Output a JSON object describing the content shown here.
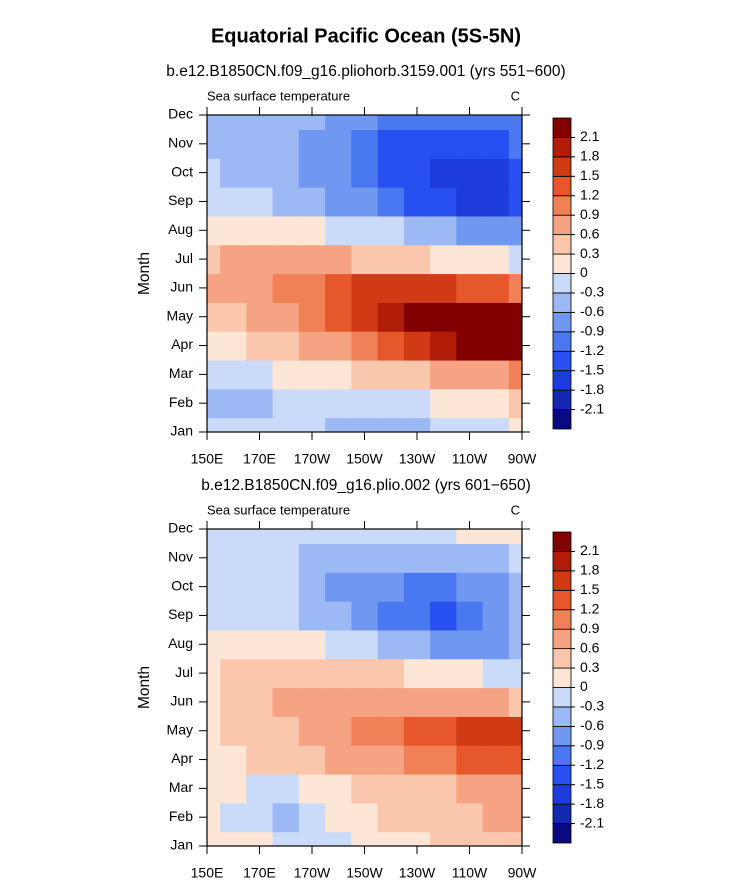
{
  "title": "Equatorial Pacific Ocean (5S-5N)",
  "chart_data": [
    {
      "type": "contour",
      "title": "b.e12.B1850CN.f09_g16.pliohorb.3159.001 (yrs 551−600)",
      "left_label": "Sea surface temperature",
      "right_label": "C",
      "y_label": "Month",
      "x": [
        150,
        160,
        170,
        180,
        190,
        200,
        210,
        220,
        230,
        240,
        250,
        260,
        270
      ],
      "categories": [
        "Jan",
        "Feb",
        "Mar",
        "Apr",
        "May",
        "Jun",
        "Jul",
        "Aug",
        "Sep",
        "Oct",
        "Nov",
        "Dec"
      ],
      "values": [
        [
          -0.2,
          -0.2,
          -0.2,
          -0.2,
          -0.3,
          -0.4,
          -0.4,
          -0.4,
          -0.4,
          -0.3,
          -0.2,
          -0.1,
          0.0
        ],
        [
          -0.4,
          -0.4,
          -0.4,
          -0.3,
          -0.2,
          -0.2,
          -0.2,
          -0.1,
          -0.1,
          0.0,
          0.1,
          0.2,
          0.3
        ],
        [
          -0.2,
          -0.2,
          -0.1,
          0.0,
          0.1,
          0.2,
          0.3,
          0.4,
          0.5,
          0.6,
          0.7,
          0.8,
          0.9
        ],
        [
          0.1,
          0.2,
          0.3,
          0.4,
          0.6,
          0.8,
          1.0,
          1.3,
          1.6,
          1.9,
          2.2,
          2.3,
          2.2
        ],
        [
          0.4,
          0.5,
          0.6,
          0.8,
          1.0,
          1.3,
          1.6,
          1.9,
          2.2,
          2.3,
          2.4,
          2.4,
          2.3
        ],
        [
          0.6,
          0.7,
          0.8,
          1.0,
          1.1,
          1.3,
          1.5,
          1.6,
          1.7,
          1.6,
          1.4,
          1.2,
          1.0
        ],
        [
          0.5,
          0.6,
          0.7,
          0.7,
          0.7,
          0.6,
          0.5,
          0.4,
          0.3,
          0.2,
          0.1,
          0.0,
          -0.2
        ],
        [
          0.2,
          0.2,
          0.2,
          0.1,
          0.0,
          -0.1,
          -0.2,
          -0.3,
          -0.5,
          -0.6,
          -0.7,
          -0.8,
          -0.9
        ],
        [
          -0.1,
          -0.2,
          -0.3,
          -0.4,
          -0.5,
          -0.7,
          -0.9,
          -1.1,
          -1.3,
          -1.5,
          -1.6,
          -1.6,
          -1.5
        ],
        [
          -0.3,
          -0.4,
          -0.5,
          -0.6,
          -0.7,
          -0.9,
          -1.1,
          -1.3,
          -1.5,
          -1.7,
          -1.7,
          -1.7,
          -1.5
        ],
        [
          -0.4,
          -0.5,
          -0.5,
          -0.6,
          -0.7,
          -0.9,
          -1.1,
          -1.3,
          -1.4,
          -1.5,
          -1.5,
          -1.4,
          -1.2
        ],
        [
          -0.4,
          -0.4,
          -0.5,
          -0.5,
          -0.6,
          -0.7,
          -0.9,
          -1.0,
          -1.1,
          -1.2,
          -1.2,
          -1.1,
          -1.0
        ]
      ],
      "xlim": [
        150,
        270
      ],
      "xticks": [
        {
          "value": 150,
          "label": "150E"
        },
        {
          "value": 170,
          "label": "170E"
        },
        {
          "value": 190,
          "label": "170W"
        },
        {
          "value": 210,
          "label": "150W"
        },
        {
          "value": 230,
          "label": "130W"
        },
        {
          "value": 250,
          "label": "110W"
        },
        {
          "value": 270,
          "label": "90W"
        }
      ],
      "levels": [
        -2.1,
        -1.8,
        -1.5,
        -1.2,
        -0.9,
        -0.6,
        -0.3,
        0,
        0.3,
        0.6,
        0.9,
        1.2,
        1.5,
        1.8,
        2.1
      ],
      "colors": [
        "#0a0a80",
        "#1428b4",
        "#1e3cdc",
        "#2850f0",
        "#4a78f0",
        "#7098f0",
        "#9cb8f5",
        "#cadaf9",
        "#fde6d6",
        "#fac6ac",
        "#f5a382",
        "#f08055",
        "#e6582c",
        "#d03a14",
        "#b01c08",
        "#820000"
      ]
    },
    {
      "type": "contour",
      "title": "b.e12.B1850CN.f09_g16.plio.002 (yrs 601−650)",
      "left_label": "Sea surface temperature",
      "right_label": "C",
      "y_label": "Month",
      "x": [
        150,
        160,
        170,
        180,
        190,
        200,
        210,
        220,
        230,
        240,
        250,
        260,
        270
      ],
      "categories": [
        "Jan",
        "Feb",
        "Mar",
        "Apr",
        "May",
        "Jun",
        "Jul",
        "Aug",
        "Sep",
        "Oct",
        "Nov",
        "Dec"
      ],
      "values": [
        [
          0.1,
          0.1,
          0.0,
          -0.3,
          -0.2,
          -0.1,
          0.1,
          0.2,
          0.2,
          0.3,
          0.3,
          0.4,
          0.4
        ],
        [
          0.0,
          -0.1,
          -0.2,
          -0.4,
          -0.2,
          0.1,
          0.2,
          0.3,
          0.3,
          0.4,
          0.5,
          0.6,
          0.6
        ],
        [
          0.1,
          0.0,
          -0.1,
          -0.1,
          0.1,
          0.2,
          0.3,
          0.4,
          0.4,
          0.5,
          0.6,
          0.7,
          0.8
        ],
        [
          0.1,
          0.2,
          0.3,
          0.3,
          0.4,
          0.6,
          0.7,
          0.8,
          1.0,
          1.1,
          1.3,
          1.4,
          1.3
        ],
        [
          0.2,
          0.3,
          0.3,
          0.5,
          0.6,
          0.7,
          0.9,
          1.0,
          1.2,
          1.3,
          1.5,
          1.6,
          1.5
        ],
        [
          0.2,
          0.3,
          0.4,
          0.6,
          0.7,
          0.7,
          0.8,
          0.8,
          0.8,
          0.8,
          0.7,
          0.6,
          0.5
        ],
        [
          0.2,
          0.3,
          0.4,
          0.4,
          0.4,
          0.4,
          0.3,
          0.3,
          0.2,
          0.1,
          0.0,
          -0.1,
          -0.3
        ],
        [
          0.1,
          0.2,
          0.2,
          0.1,
          0.0,
          -0.2,
          -0.3,
          -0.5,
          -0.6,
          -0.7,
          -0.8,
          -0.8,
          -0.5
        ],
        [
          -0.1,
          -0.1,
          -0.2,
          -0.2,
          -0.4,
          -0.6,
          -0.8,
          -1.0,
          -1.2,
          -1.3,
          -1.1,
          -0.9,
          -0.6
        ],
        [
          -0.1,
          -0.2,
          -0.2,
          -0.3,
          -0.5,
          -0.7,
          -0.8,
          -0.9,
          -1.0,
          -1.0,
          -0.9,
          -0.8,
          -0.5
        ],
        [
          -0.1,
          -0.1,
          -0.2,
          -0.3,
          -0.4,
          -0.5,
          -0.6,
          -0.6,
          -0.6,
          -0.5,
          -0.5,
          -0.4,
          -0.3
        ],
        [
          -0.1,
          -0.1,
          -0.2,
          -0.2,
          -0.3,
          -0.3,
          -0.3,
          -0.2,
          -0.2,
          -0.1,
          0.0,
          0.1,
          0.1
        ]
      ],
      "xlim": [
        150,
        270
      ],
      "xticks": [
        {
          "value": 150,
          "label": "150E"
        },
        {
          "value": 170,
          "label": "170E"
        },
        {
          "value": 190,
          "label": "170W"
        },
        {
          "value": 210,
          "label": "150W"
        },
        {
          "value": 230,
          "label": "130W"
        },
        {
          "value": 250,
          "label": "110W"
        },
        {
          "value": 270,
          "label": "90W"
        }
      ],
      "levels": [
        -2.1,
        -1.8,
        -1.5,
        -1.2,
        -0.9,
        -0.6,
        -0.3,
        0,
        0.3,
        0.6,
        0.9,
        1.2,
        1.5,
        1.8,
        2.1
      ],
      "colors": [
        "#0a0a80",
        "#1428b4",
        "#1e3cdc",
        "#2850f0",
        "#4a78f0",
        "#7098f0",
        "#9cb8f5",
        "#cadaf9",
        "#fde6d6",
        "#fac6ac",
        "#f5a382",
        "#f08055",
        "#e6582c",
        "#d03a14",
        "#b01c08",
        "#820000"
      ]
    }
  ]
}
